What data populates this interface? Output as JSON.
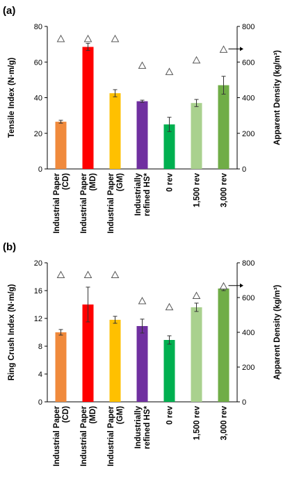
{
  "chart_data": [
    {
      "type": "bar",
      "panel_label": "(a)",
      "categories": [
        [
          "Industrial Paper",
          "(CD)"
        ],
        [
          "Industrial Paper",
          "(MD)"
        ],
        [
          "Industrial Paper",
          "(GM)"
        ],
        [
          "Industrially",
          "refined HS*"
        ],
        [
          "0 rev"
        ],
        [
          "1,500 rev"
        ],
        [
          "3,000 rev"
        ]
      ],
      "values": [
        26.5,
        68.5,
        42.5,
        38,
        25,
        37,
        47
      ],
      "errors": [
        0.8,
        2.0,
        2.0,
        0.6,
        4.0,
        2.0,
        5.0
      ],
      "colors": [
        "#f08a3c",
        "#ff0000",
        "#ffc000",
        "#7030a0",
        "#00b050",
        "#a9d18e",
        "#70ad47"
      ],
      "ylabel": "Tensile Index (N·m/g)",
      "ylim": [
        0,
        80
      ],
      "yticks": [
        0,
        20,
        40,
        60,
        80
      ],
      "secondary_axis": {
        "label": "Apparent Density (kg/m³)",
        "lim": [
          0,
          800
        ],
        "ticks": [
          0,
          200,
          400,
          600,
          800
        ],
        "marker": "open-triangle",
        "values": [
          730,
          730,
          730,
          580,
          545,
          610,
          670
        ]
      },
      "grid": false
    },
    {
      "type": "bar",
      "panel_label": "(b)",
      "categories": [
        [
          "Industrial Paper",
          "(CD)"
        ],
        [
          "Industrial Paper",
          "(MD)"
        ],
        [
          "Industrial Paper",
          "(GM)"
        ],
        [
          "Industrially",
          "refined HS*"
        ],
        [
          "0 rev"
        ],
        [
          "1,500 rev"
        ],
        [
          "3,000 rev"
        ]
      ],
      "values": [
        10,
        14,
        11.8,
        10.9,
        8.9,
        13.6,
        16.3
      ],
      "errors": [
        0.4,
        2.5,
        0.5,
        1.0,
        0.6,
        0.6,
        0.3
      ],
      "colors": [
        "#f08a3c",
        "#ff0000",
        "#ffc000",
        "#7030a0",
        "#00b050",
        "#a9d18e",
        "#70ad47"
      ],
      "ylabel": "Ring Crush Index (N·m/g)",
      "ylim": [
        0,
        20
      ],
      "yticks": [
        0,
        4,
        8,
        12,
        16,
        20
      ],
      "secondary_axis": {
        "label": "Apparent Density (kg/m³)",
        "lim": [
          0,
          800
        ],
        "ticks": [
          0,
          200,
          400,
          600,
          800
        ],
        "marker": "open-triangle",
        "values": [
          730,
          730,
          730,
          580,
          545,
          610,
          665
        ]
      },
      "grid": false
    }
  ]
}
